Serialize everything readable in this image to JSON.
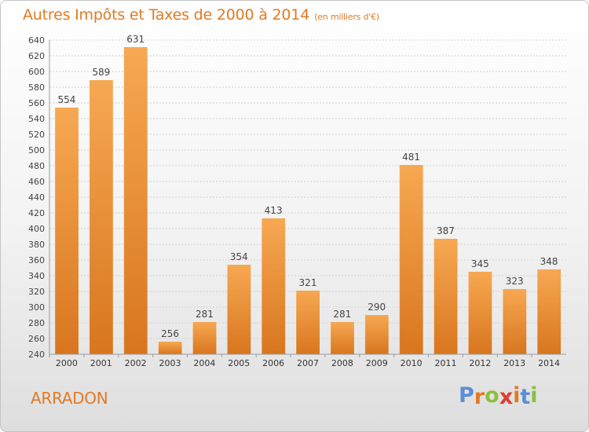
{
  "header": {
    "title": "Autres Impôts et Taxes de 2000 à 2014",
    "unit": "(en milliers d'€)"
  },
  "footer": {
    "city": "ARRADON",
    "brand": [
      "P",
      "r",
      "o",
      "x",
      "i",
      "t",
      "i"
    ]
  },
  "colors": {
    "title": "#e07b24",
    "bar_top": "#f7a852",
    "bar_bottom": "#d8761f",
    "brand": [
      "#5b8ed6",
      "#e07b24",
      "#8cbf3f",
      "#e03c31",
      "#e07b24",
      "#5b8ed6",
      "#8cbf3f"
    ]
  },
  "chart_data": {
    "type": "bar",
    "title": "Autres Impôts et Taxes de 2000 à 2014",
    "categories": [
      "2000",
      "2001",
      "2002",
      "2003",
      "2004",
      "2005",
      "2006",
      "2007",
      "2008",
      "2009",
      "2010",
      "2011",
      "2012",
      "2013",
      "2014"
    ],
    "values": [
      554,
      589,
      631,
      256,
      281,
      354,
      413,
      321,
      281,
      290,
      481,
      387,
      345,
      323,
      348
    ],
    "ylim": [
      240,
      640
    ],
    "yticks": [
      240,
      260,
      280,
      300,
      320,
      340,
      360,
      380,
      400,
      420,
      440,
      460,
      480,
      500,
      520,
      540,
      560,
      580,
      600,
      620,
      640
    ],
    "grid": true,
    "data_labels": true
  }
}
